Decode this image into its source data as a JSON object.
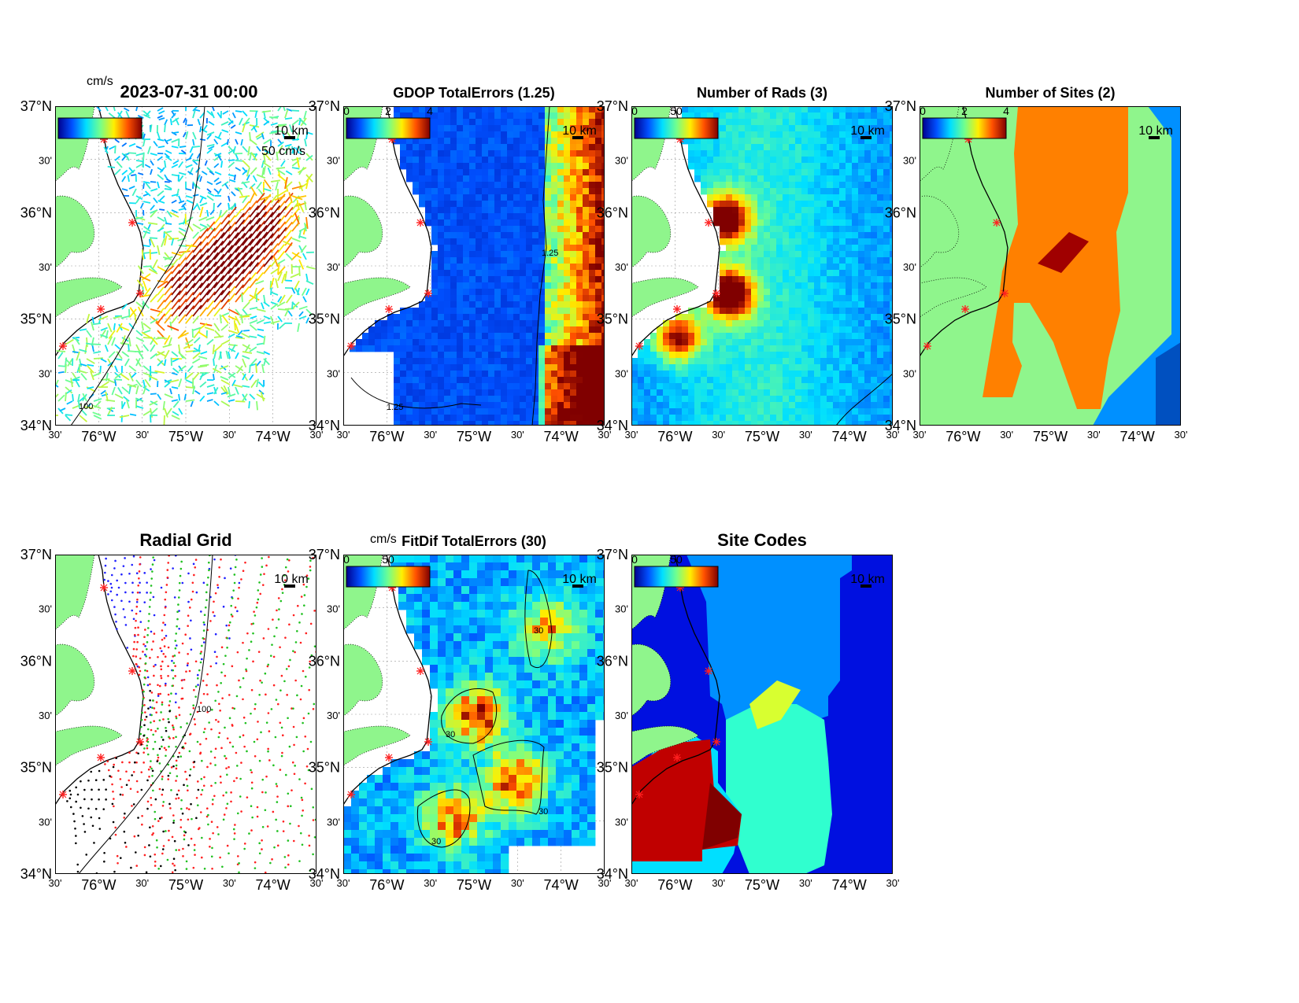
{
  "axes": {
    "lat_labels": [
      "37°N",
      "30'",
      "36°N",
      "30'",
      "35°N",
      "30'",
      "34°N"
    ],
    "lon_labels": [
      "30'",
      "76°W",
      "30'",
      "75°W",
      "30'",
      "74°W",
      "30'"
    ]
  },
  "scale_bar_label": "10 km",
  "units_label": "cm/s",
  "panels": [
    {
      "id": "currents",
      "title": "2023-07-31 00:00",
      "colorbar_unit": "cm/s",
      "colorbar_ticks": [],
      "ref_vector_label": "50 cm/s",
      "contour_label": "100"
    },
    {
      "id": "gdop",
      "title": "GDOP TotalErrors (1.25)",
      "colorbar_ticks": [
        "0",
        "2",
        "4"
      ],
      "contour_label": "1.25"
    },
    {
      "id": "nrads",
      "title": "Number of Rads (3)",
      "colorbar_ticks": [
        "0",
        "50"
      ]
    },
    {
      "id": "nsites",
      "title": "Number of Sites (2)",
      "colorbar_ticks": [
        "0",
        "2",
        "4"
      ],
      "contour_label": "2"
    },
    {
      "id": "radial-grid",
      "title": "Radial Grid",
      "contour_label": "100"
    },
    {
      "id": "fitdif",
      "title": "FitDif TotalErrors (30)",
      "colorbar_unit": "cm/s",
      "colorbar_ticks": [
        "0",
        "50"
      ],
      "contour_label": "30"
    },
    {
      "id": "site-codes",
      "title": "Site Codes",
      "colorbar_ticks": [
        "0",
        "50"
      ]
    }
  ],
  "colors": {
    "land": "#8ff58c",
    "site_marker": "#ff2020",
    "colormap": [
      "#00008f",
      "#0050ff",
      "#00dfff",
      "#70ff8f",
      "#ffef00",
      "#ff5000",
      "#800000"
    ]
  }
}
